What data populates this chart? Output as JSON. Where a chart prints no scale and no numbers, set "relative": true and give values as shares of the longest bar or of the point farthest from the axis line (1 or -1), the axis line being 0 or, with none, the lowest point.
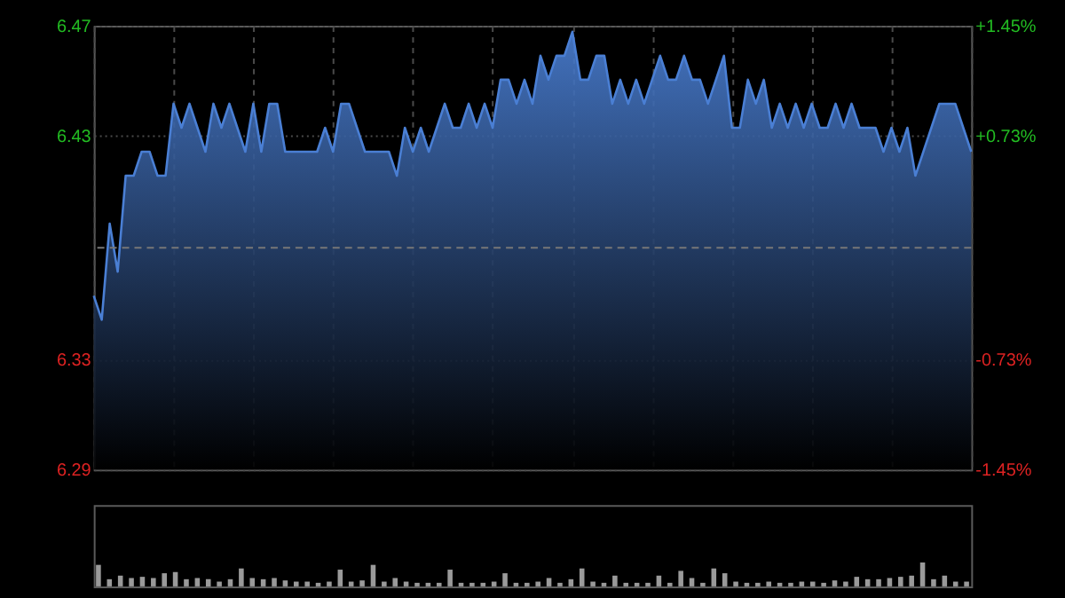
{
  "chart_data": [
    {
      "type": "area",
      "categories": [
        null,
        null,
        null,
        null,
        null,
        null,
        null,
        null,
        null,
        null,
        null,
        null,
        null,
        null,
        null,
        null,
        null,
        null,
        null,
        null,
        null,
        null,
        null,
        null,
        null,
        null,
        null,
        null,
        null,
        null,
        null,
        null,
        null,
        null,
        null,
        null,
        null,
        null,
        null,
        null,
        null,
        null,
        null,
        null,
        null,
        null,
        null,
        null,
        null,
        null,
        null,
        null,
        null,
        null,
        null,
        null,
        null,
        null,
        null,
        null,
        null,
        null,
        null,
        null,
        null,
        null,
        null,
        null,
        null,
        null,
        null,
        null,
        null,
        null,
        null,
        null,
        null,
        null,
        null,
        null,
        null,
        null,
        null,
        null,
        null,
        null,
        null,
        null,
        null,
        null,
        null,
        null,
        null,
        null,
        null,
        null,
        null,
        null,
        null,
        null,
        null,
        null,
        null,
        null,
        null,
        null,
        null,
        null,
        null,
        null,
        null
      ],
      "ylim": [
        6.2875,
        6.4725
      ],
      "yticks": [
        {
          "value": 6.2875,
          "label": "6.29"
        },
        {
          "value": 6.3334,
          "label": "6.33"
        },
        {
          "value": 6.4266,
          "label": "6.43"
        },
        {
          "value": 6.4725,
          "label": "6.47"
        }
      ],
      "y2lim": [
        -1.45,
        1.45
      ],
      "y2ticks": [
        {
          "value": -1.45,
          "label": "-1.45%"
        },
        {
          "value": -0.73,
          "label": "-0.73%"
        },
        {
          "value": 0.73,
          "label": "+0.73%"
        },
        {
          "value": 1.45,
          "label": "+1.45%"
        }
      ],
      "grid": true,
      "tick_labels": "y",
      "ref_lines": [
        {
          "axis": "y",
          "value": 6.38,
          "color": "#777777",
          "line_style": "dashed"
        }
      ],
      "series": [
        {
          "color": "#4a7fd4",
          "values": [
            6.36,
            6.35,
            6.39,
            6.37,
            6.41,
            6.41,
            6.42,
            6.42,
            6.41,
            6.41,
            6.44,
            6.43,
            6.44,
            6.43,
            6.42,
            6.44,
            6.43,
            6.44,
            6.43,
            6.42,
            6.44,
            6.42,
            6.44,
            6.44,
            6.42,
            6.42,
            6.42,
            6.42,
            6.42,
            6.43,
            6.42,
            6.44,
            6.44,
            6.43,
            6.42,
            6.42,
            6.42,
            6.42,
            6.41,
            6.43,
            6.42,
            6.43,
            6.42,
            6.43,
            6.44,
            6.43,
            6.43,
            6.44,
            6.43,
            6.44,
            6.43,
            6.45,
            6.45,
            6.44,
            6.45,
            6.44,
            6.46,
            6.45,
            6.46,
            6.46,
            6.47,
            6.45,
            6.45,
            6.46,
            6.46,
            6.44,
            6.45,
            6.44,
            6.45,
            6.44,
            6.45,
            6.46,
            6.45,
            6.45,
            6.46,
            6.45,
            6.45,
            6.44,
            6.45,
            6.46,
            6.43,
            6.43,
            6.45,
            6.44,
            6.45,
            6.43,
            6.44,
            6.43,
            6.44,
            6.43,
            6.44,
            6.43,
            6.43,
            6.44,
            6.43,
            6.44,
            6.43,
            6.43,
            6.43,
            6.42,
            6.43,
            6.42,
            6.43,
            6.41,
            6.42,
            6.43,
            6.44,
            6.44,
            6.44,
            6.43,
            6.42
          ]
        }
      ]
    },
    {
      "type": "bar",
      "relative": true,
      "color": "#9a9a9a",
      "categories": [
        null,
        null,
        null,
        null,
        null,
        null,
        null,
        null,
        null,
        null,
        null,
        null,
        null,
        null,
        null,
        null,
        null,
        null,
        null,
        null,
        null,
        null,
        null,
        null,
        null,
        null,
        null,
        null,
        null,
        null,
        null,
        null,
        null,
        null,
        null,
        null,
        null,
        null,
        null,
        null,
        null,
        null,
        null,
        null,
        null,
        null,
        null,
        null,
        null,
        null,
        null,
        null,
        null,
        null,
        null,
        null,
        null,
        null,
        null,
        null,
        null,
        null,
        null,
        null,
        null,
        null,
        null,
        null,
        null,
        null,
        null,
        null,
        null,
        null,
        null,
        null,
        null,
        null,
        null,
        null
      ],
      "values": [
        0.9,
        0.3,
        0.45,
        0.35,
        0.4,
        0.35,
        0.55,
        0.6,
        0.3,
        0.35,
        0.3,
        0.2,
        0.3,
        0.75,
        0.35,
        0.3,
        0.35,
        0.25,
        0.2,
        0.2,
        0.15,
        0.2,
        0.7,
        0.2,
        0.25,
        0.9,
        0.2,
        0.35,
        0.2,
        0.15,
        0.15,
        0.15,
        0.7,
        0.15,
        0.15,
        0.15,
        0.2,
        0.55,
        0.15,
        0.15,
        0.2,
        0.35,
        0.15,
        0.3,
        0.75,
        0.2,
        0.15,
        0.45,
        0.15,
        0.15,
        0.15,
        0.45,
        0.15,
        0.65,
        0.35,
        0.15,
        0.75,
        0.55,
        0.2,
        0.15,
        0.15,
        0.2,
        0.15,
        0.15,
        0.2,
        0.2,
        0.15,
        0.25,
        0.2,
        0.4,
        0.3,
        0.3,
        0.35,
        0.4,
        0.45,
        1,
        0.3,
        0.45,
        0.2,
        0.2
      ]
    }
  ]
}
